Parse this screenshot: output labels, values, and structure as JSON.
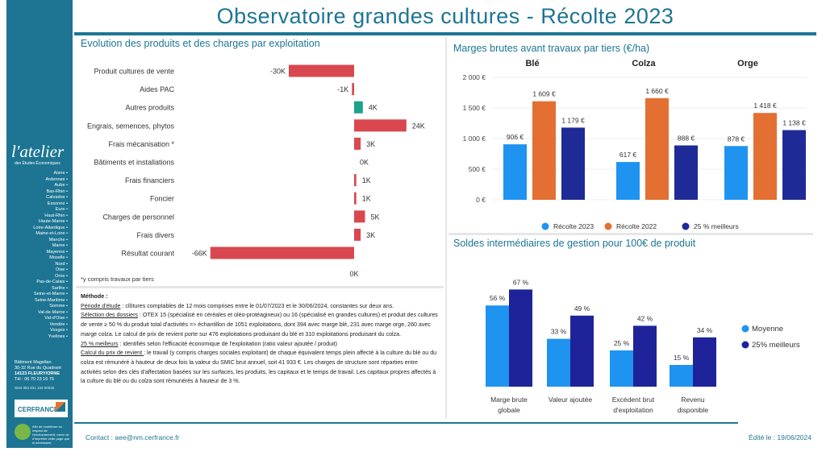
{
  "page": {
    "title": "Observatoire grandes cultures - Récolte 2023",
    "contact": "Contact : aee@nm.cerfrance.fr",
    "edited": "Édité le : 19/06/2024"
  },
  "sidebar": {
    "logo": "l'atelier",
    "logo_sub": "des Études Économiques",
    "departments": [
      "Aisne",
      "Ardennes",
      "Aube",
      "Bas-Rhin",
      "Calvados",
      "Essonne",
      "Eure",
      "Haut-Rhin",
      "Haute-Marne",
      "Loire-Atlantique",
      "Maine-et-Loire",
      "Manche",
      "Marne",
      "Mayenne",
      "Moselle",
      "Nord",
      "Oise",
      "Orne",
      "Pas-de-Calais",
      "Sarthe",
      "Seine-et-Marne",
      "Seine-Maritime",
      "Somme",
      "Val-de-Marne",
      "Val-d'Oise",
      "Vendée",
      "Vosges",
      "Yvelines"
    ],
    "address": [
      "Bâtiment Magellan",
      "30-32 Rue du Quadrant",
      "14123 FLEURY/ORNE",
      "Tél : 06 70 23 16 76"
    ],
    "siret": "Siret 384 831 103 00035",
    "brand": "CERFRANCE",
    "eco_note": "Afin de contribuer au respect de l'environnement, merci de n'imprimer cette page que si nécessaire."
  },
  "colors": {
    "primary": "#1d7593",
    "negative_bar": "#d9474f",
    "positive_bar": "#1aa38c",
    "recolte_2023": "#1f93f0",
    "recolte_2022": "#e46f32",
    "top25": "#1e2b96",
    "moyenne": "#1f93f0",
    "top25_sig": "#1f239a"
  },
  "methode": {
    "heading": "Méthode :",
    "items": [
      {
        "label": "Période d'étude",
        "text": " : clôtures comptables de 12 mois comprises entre le 01/07/2023 et le 30/06/2024, constantes sur deux ans."
      },
      {
        "label": "Sélection des dossiers",
        "text": " : OTEX 15 (spécialisé en céréales et oléo-protéagineux) ou 16 (spécialisé en grandes cultures) et produit des cultures de vente ≥ 50 % du produit total d'activités => échantillon de 1051 exploitations, dont 394 avec marge blé, 231 avec marge orge, 260 avec marge colza. Le calcul de prix de revient porte sur 476  exploitations produisant du blé et 310 exploitations produisant du colza."
      },
      {
        "label": "25 % meilleurs",
        "text": " : identifiés selon l'efficacité économique de l'exploitation (ratio valeur ajoutée / produit)"
      },
      {
        "label": "Calcul du prix de revient ",
        "text": ": le travail (y compris charges sociales exploitant) de chaque équivalent temps plein affecté à la culture du blé ou du colza est rémunéré à hauteur de deux fois la valeur du SMIC brut annuel, soit 41 933 €. Les charges de structure sont réparties entre activités selon des clés d'affectation basées sur les surfaces, les produits, les capitaux et le temps de travail. Les capitaux propres affectés à la culture du blé ou du colza sont rémunérés à hauteur de 3 %."
      }
    ]
  },
  "chart_data": [
    {
      "type": "bar",
      "orientation": "horizontal",
      "title": "Evolution des produits et des charges par exploitation",
      "categories": [
        "Produit cultures de vente",
        "Aides PAC",
        "Autres produits",
        "Engrais, semences, phytos",
        "Frais mécanisation *",
        "Bâtiments et installations",
        "Frais financiers",
        "Foncier",
        "Charges de personnel",
        "Frais divers",
        "Résultat courant"
      ],
      "values": [
        -30,
        -1,
        4,
        24,
        3,
        0,
        1,
        1,
        5,
        3,
        -66
      ],
      "value_labels": [
        "-30K",
        "-1K",
        "4K",
        "24K",
        "3K",
        "0K",
        "1K",
        "1K",
        "5K",
        "3K",
        "-66K"
      ],
      "unit": "K€",
      "zero_label": "0K",
      "xlim": [
        -66,
        24
      ],
      "footnote": "*y compris travaux par tiers"
    },
    {
      "type": "bar",
      "title": "Marges brutes avant travaux par tiers (€/ha)",
      "groups": [
        "Blé",
        "Colza",
        "Orge"
      ],
      "series": [
        {
          "name": "Récolte 2023",
          "values": [
            906,
            617,
            878
          ],
          "labels": [
            "906 €",
            "617 €",
            "878 €"
          ]
        },
        {
          "name": "Récolte 2022",
          "values": [
            1609,
            1660,
            1418
          ],
          "labels": [
            "1 609 €",
            "1 660 €",
            "1 418 €"
          ]
        },
        {
          "name": "25 % meilleurs",
          "values": [
            1179,
            888,
            1138
          ],
          "labels": [
            "1 179 €",
            "888 €",
            "1 138 €"
          ]
        }
      ],
      "ylim": [
        0,
        2000
      ],
      "yticks": [
        0,
        500,
        1000,
        1500,
        2000
      ],
      "ytick_labels": [
        "0 €",
        "500 €",
        "1 000 €",
        "1 500 €",
        "2 000 €"
      ],
      "legend": "bottom",
      "grid": true
    },
    {
      "type": "bar",
      "title": "Soldes intermédiaires de gestion pour 100€ de produit",
      "categories": [
        [
          "Marge brute",
          "globale"
        ],
        [
          "Valeur ajoutée"
        ],
        [
          "Excédent brut",
          "d'exploitation"
        ],
        [
          "Revenu",
          "disponible"
        ]
      ],
      "series": [
        {
          "name": "Moyenne",
          "values": [
            56,
            33,
            25,
            15
          ],
          "labels": [
            "56 %",
            "33 %",
            "25 %",
            "15 %"
          ]
        },
        {
          "name": "25% meilleurs",
          "values": [
            67,
            49,
            42,
            34
          ],
          "labels": [
            "67 %",
            "49 %",
            "42 %",
            "34 %"
          ]
        }
      ],
      "ylim": [
        0,
        70
      ],
      "legend": "right",
      "grid": false
    }
  ]
}
